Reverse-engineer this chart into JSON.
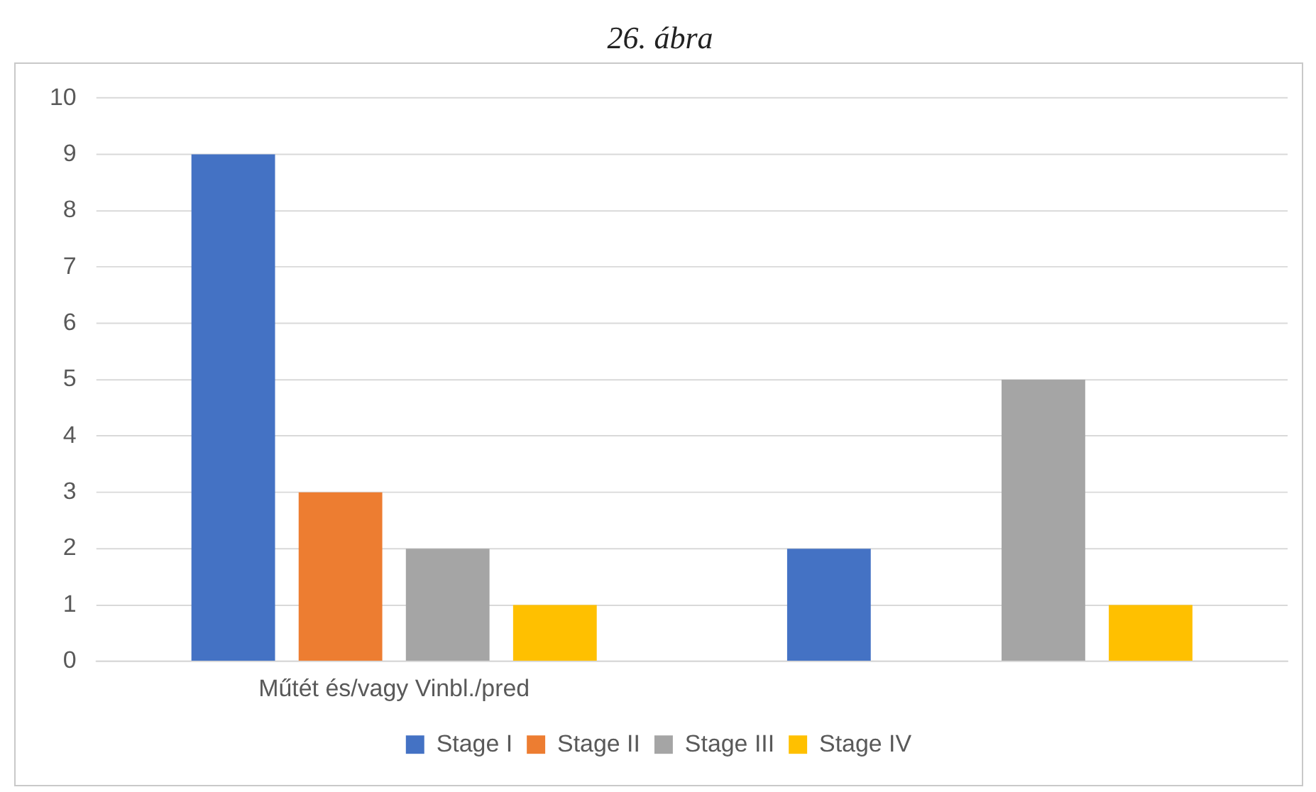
{
  "chart_data": {
    "type": "bar",
    "title": "26. ábra",
    "categories": [
      "Műtét és/vagy Vinbl./pred",
      null
    ],
    "series": [
      {
        "name": "Stage I",
        "color": "#4472c4",
        "values": [
          9,
          2
        ]
      },
      {
        "name": "Stage II",
        "color": "#ed7d31",
        "values": [
          3,
          0
        ]
      },
      {
        "name": "Stage III",
        "color": "#a5a5a5",
        "values": [
          2,
          5
        ]
      },
      {
        "name": "Stage IV",
        "color": "#ffc000",
        "values": [
          1,
          1
        ]
      }
    ],
    "ylim": [
      0,
      10
    ],
    "yticks": [
      0,
      1,
      2,
      3,
      4,
      5,
      6,
      7,
      8,
      9,
      10
    ],
    "grid": "y",
    "legend": "bottom"
  }
}
